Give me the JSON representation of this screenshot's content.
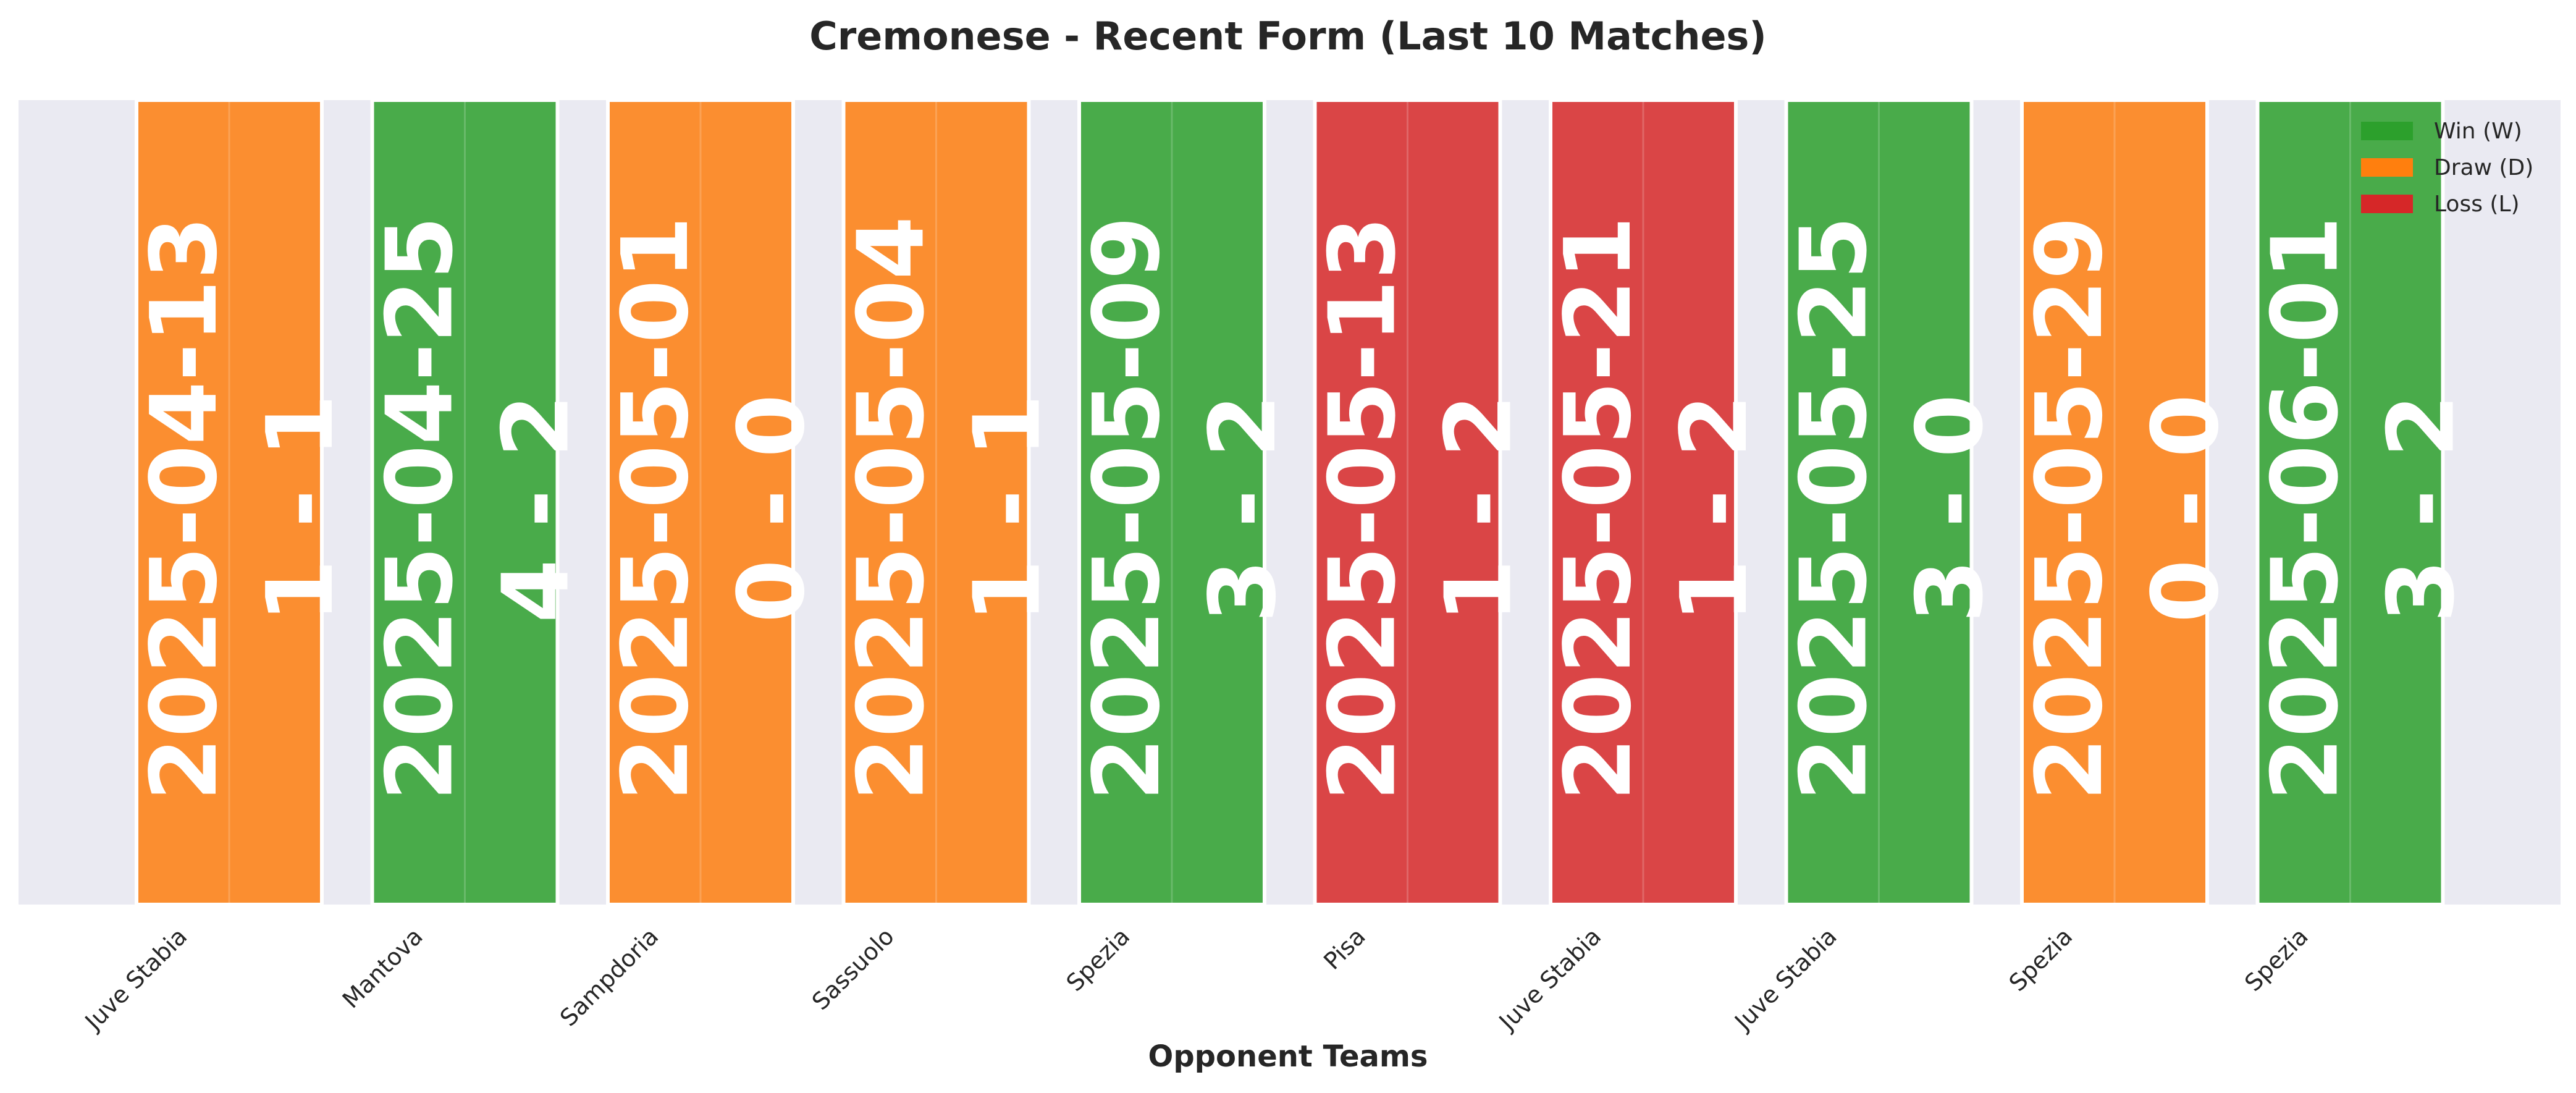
{
  "chart_data": {
    "type": "bar",
    "title": "Cremonese - Recent Form (Last 10 Matches)",
    "xlabel": "Opponent Teams",
    "ylabel": "",
    "ylim": [
      0,
      1
    ],
    "grid": true,
    "legend_position": "top-right",
    "categories": [
      "Juve Stabia",
      "Mantova",
      "Sampdoria",
      "Sassuolo",
      "Spezia",
      "Pisa",
      "Juve Stabia",
      "Juve Stabia",
      "Spezia",
      "Spezia"
    ],
    "values": [
      1,
      1,
      1,
      1,
      1,
      1,
      1,
      1,
      1,
      1
    ],
    "results": [
      "D",
      "W",
      "D",
      "D",
      "W",
      "L",
      "L",
      "W",
      "D",
      "W"
    ],
    "dates": [
      "2025-04-13",
      "2025-04-25",
      "2025-05-01",
      "2025-05-04",
      "2025-05-09",
      "2025-05-13",
      "2025-05-21",
      "2025-05-25",
      "2025-05-29",
      "2025-06-01"
    ],
    "scores": [
      "1 - 1",
      "4 - 2",
      "0 - 0",
      "1 - 1",
      "3 - 2",
      "1 - 2",
      "1 - 2",
      "3 - 0",
      "0 - 0",
      "3 - 2"
    ],
    "legend": [
      {
        "key": "W",
        "label": "Win (W)",
        "color": "#2ca02c"
      },
      {
        "key": "D",
        "label": "Draw (D)",
        "color": "#ff7f0e"
      },
      {
        "key": "L",
        "label": "Loss (L)",
        "color": "#d62728"
      }
    ],
    "colors": {
      "W": "#49ab4a",
      "D": "#fb8e30",
      "L": "#da4546",
      "background": "#eaeaf2"
    }
  }
}
